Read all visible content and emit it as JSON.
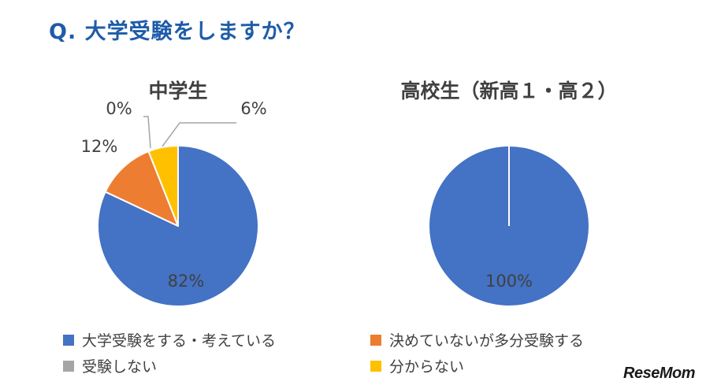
{
  "question": "Q. 大学受験をしますか？",
  "logo": "ReseMom",
  "chart_data": [
    {
      "type": "pie",
      "title": "中学生",
      "categories": [
        "大学受験をする・考えている",
        "決めていないが多分受験する",
        "受験しない",
        "分からない"
      ],
      "values": [
        82,
        12,
        0,
        6
      ],
      "labels": [
        "82%",
        "12%",
        "0%",
        "6%"
      ]
    },
    {
      "type": "pie",
      "title": "高校生（新高１・高２）",
      "categories": [
        "大学受験をする・考えている",
        "決めていないが多分受験する",
        "受験しない",
        "分からない"
      ],
      "values": [
        100,
        0,
        0,
        0
      ],
      "labels": [
        "100%"
      ]
    }
  ],
  "legend": [
    {
      "label": "大学受験をする・考えている",
      "color": "#4472c4"
    },
    {
      "label": "決めていないが多分受験する",
      "color": "#ed7d31"
    },
    {
      "label": "受験しない",
      "color": "#a5a5a5"
    },
    {
      "label": "分からない",
      "color": "#ffc000"
    }
  ]
}
